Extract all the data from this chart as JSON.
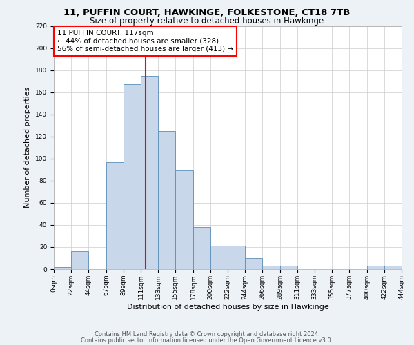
{
  "title1": "11, PUFFIN COURT, HAWKINGE, FOLKESTONE, CT18 7TB",
  "title2": "Size of property relative to detached houses in Hawkinge",
  "xlabel": "Distribution of detached houses by size in Hawkinge",
  "ylabel": "Number of detached properties",
  "bar_color": "#c8d8ea",
  "bar_edge_color": "#5b8db8",
  "property_line_x": 117,
  "property_line_color": "red",
  "annotation_title": "11 PUFFIN COURT: 117sqm",
  "annotation_line1": "← 44% of detached houses are smaller (328)",
  "annotation_line2": "56% of semi-detached houses are larger (413) →",
  "annotation_box_color": "white",
  "annotation_box_edge": "red",
  "bin_edges": [
    0,
    22,
    44,
    67,
    89,
    111,
    133,
    155,
    178,
    200,
    222,
    244,
    266,
    289,
    311,
    333,
    355,
    377,
    400,
    422,
    444
  ],
  "bar_heights": [
    2,
    16,
    0,
    97,
    167,
    175,
    125,
    89,
    38,
    21,
    21,
    10,
    3,
    3,
    0,
    0,
    0,
    0,
    3,
    3
  ],
  "ylim": [
    0,
    220
  ],
  "yticks": [
    0,
    20,
    40,
    60,
    80,
    100,
    120,
    140,
    160,
    180,
    200,
    220
  ],
  "xtick_labels": [
    "0sqm",
    "22sqm",
    "44sqm",
    "67sqm",
    "89sqm",
    "111sqm",
    "133sqm",
    "155sqm",
    "178sqm",
    "200sqm",
    "222sqm",
    "244sqm",
    "266sqm",
    "289sqm",
    "311sqm",
    "333sqm",
    "355sqm",
    "377sqm",
    "400sqm",
    "422sqm",
    "444sqm"
  ],
  "footer1": "Contains HM Land Registry data © Crown copyright and database right 2024.",
  "footer2": "Contains public sector information licensed under the Open Government Licence v3.0.",
  "bg_color": "#edf2f7",
  "plot_bg_color": "#ffffff",
  "grid_color": "#cccccc",
  "title_fontsize": 9.5,
  "subtitle_fontsize": 8.5,
  "axis_label_fontsize": 8,
  "tick_fontsize": 6.5,
  "footer_fontsize": 6,
  "annotation_fontsize": 7.5
}
